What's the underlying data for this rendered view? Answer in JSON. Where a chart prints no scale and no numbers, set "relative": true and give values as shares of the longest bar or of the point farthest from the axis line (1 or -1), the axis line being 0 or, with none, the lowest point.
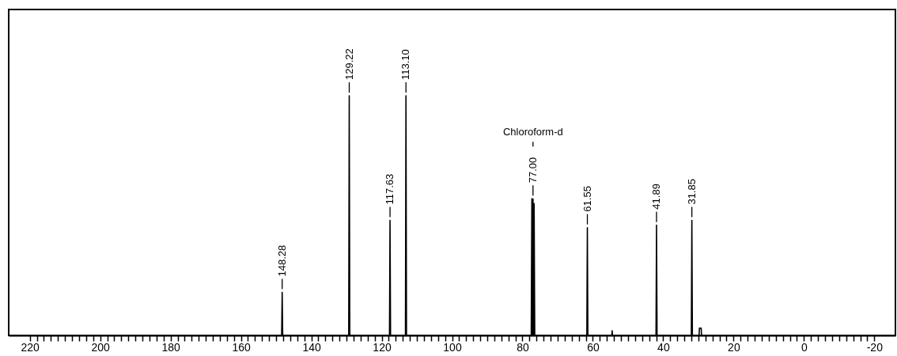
{
  "chart_data": {
    "type": "line",
    "relative": true,
    "marker": "none",
    "grid": false,
    "xlim": [
      226,
      -26
    ],
    "xticks": [
      220,
      {
        "value": 218,
        "label": null
      },
      {
        "value": 216,
        "label": null
      },
      {
        "value": 214,
        "label": null
      },
      {
        "value": 212,
        "label": null
      },
      {
        "value": 210,
        "label": null
      },
      {
        "value": 208,
        "label": null
      },
      {
        "value": 206,
        "label": null
      },
      {
        "value": 204,
        "label": null
      },
      {
        "value": 202,
        "label": null
      },
      200,
      {
        "value": 198,
        "label": null
      },
      {
        "value": 196,
        "label": null
      },
      {
        "value": 194,
        "label": null
      },
      {
        "value": 192,
        "label": null
      },
      {
        "value": 190,
        "label": null
      },
      {
        "value": 188,
        "label": null
      },
      {
        "value": 186,
        "label": null
      },
      {
        "value": 184,
        "label": null
      },
      {
        "value": 182,
        "label": null
      },
      180,
      {
        "value": 178,
        "label": null
      },
      {
        "value": 176,
        "label": null
      },
      {
        "value": 174,
        "label": null
      },
      {
        "value": 172,
        "label": null
      },
      {
        "value": 170,
        "label": null
      },
      {
        "value": 168,
        "label": null
      },
      {
        "value": 166,
        "label": null
      },
      {
        "value": 164,
        "label": null
      },
      {
        "value": 162,
        "label": null
      },
      160,
      {
        "value": 158,
        "label": null
      },
      {
        "value": 156,
        "label": null
      },
      {
        "value": 154,
        "label": null
      },
      {
        "value": 152,
        "label": null
      },
      {
        "value": 150,
        "label": null
      },
      {
        "value": 148,
        "label": null
      },
      {
        "value": 146,
        "label": null
      },
      {
        "value": 144,
        "label": null
      },
      {
        "value": 142,
        "label": null
      },
      140,
      {
        "value": 138,
        "label": null
      },
      {
        "value": 136,
        "label": null
      },
      {
        "value": 134,
        "label": null
      },
      {
        "value": 132,
        "label": null
      },
      {
        "value": 130,
        "label": null
      },
      {
        "value": 128,
        "label": null
      },
      {
        "value": 126,
        "label": null
      },
      {
        "value": 124,
        "label": null
      },
      {
        "value": 122,
        "label": null
      },
      120,
      {
        "value": 118,
        "label": null
      },
      {
        "value": 116,
        "label": null
      },
      {
        "value": 114,
        "label": null
      },
      {
        "value": 112,
        "label": null
      },
      {
        "value": 110,
        "label": null
      },
      {
        "value": 108,
        "label": null
      },
      {
        "value": 106,
        "label": null
      },
      {
        "value": 104,
        "label": null
      },
      {
        "value": 102,
        "label": null
      },
      100,
      {
        "value": 98,
        "label": null
      },
      {
        "value": 96,
        "label": null
      },
      {
        "value": 94,
        "label": null
      },
      {
        "value": 92,
        "label": null
      },
      {
        "value": 90,
        "label": null
      },
      {
        "value": 88,
        "label": null
      },
      {
        "value": 86,
        "label": null
      },
      {
        "value": 84,
        "label": null
      },
      {
        "value": 82,
        "label": null
      },
      80,
      {
        "value": 78,
        "label": null
      },
      {
        "value": 76,
        "label": null
      },
      {
        "value": 74,
        "label": null
      },
      {
        "value": 72,
        "label": null
      },
      {
        "value": 70,
        "label": null
      },
      {
        "value": 68,
        "label": null
      },
      {
        "value": 66,
        "label": null
      },
      {
        "value": 64,
        "label": null
      },
      {
        "value": 62,
        "label": null
      },
      60,
      {
        "value": 58,
        "label": null
      },
      {
        "value": 56,
        "label": null
      },
      {
        "value": 54,
        "label": null
      },
      {
        "value": 52,
        "label": null
      },
      {
        "value": 50,
        "label": null
      },
      {
        "value": 48,
        "label": null
      },
      {
        "value": 46,
        "label": null
      },
      {
        "value": 44,
        "label": null
      },
      {
        "value": 42,
        "label": null
      },
      40,
      {
        "value": 38,
        "label": null
      },
      {
        "value": 36,
        "label": null
      },
      {
        "value": 34,
        "label": null
      },
      {
        "value": 32,
        "label": null
      },
      {
        "value": 30,
        "label": null
      },
      {
        "value": 28,
        "label": null
      },
      {
        "value": 26,
        "label": null
      },
      {
        "value": 24,
        "label": null
      },
      {
        "value": 22,
        "label": null
      },
      20,
      {
        "value": 18,
        "label": null
      },
      {
        "value": 16,
        "label": null
      },
      {
        "value": 14,
        "label": null
      },
      {
        "value": 12,
        "label": null
      },
      {
        "value": 10,
        "label": null
      },
      {
        "value": 8,
        "label": null
      },
      {
        "value": 6,
        "label": null
      },
      {
        "value": 4,
        "label": null
      },
      {
        "value": 2,
        "label": null
      },
      0,
      {
        "value": -2,
        "label": null
      },
      {
        "value": -4,
        "label": null
      },
      {
        "value": -6,
        "label": null
      },
      {
        "value": -8,
        "label": null
      },
      {
        "value": -10,
        "label": null
      },
      {
        "value": -12,
        "label": null
      },
      {
        "value": -14,
        "label": null
      },
      {
        "value": -16,
        "label": null
      },
      {
        "value": -18,
        "label": null
      },
      -20
    ],
    "series": [
      {
        "color": "#000000",
        "x": [
          226,
          148.43,
          148.28,
          148.13,
          129.37,
          129.22,
          129.07,
          117.78,
          117.63,
          117.48,
          113.25,
          113.1,
          112.95,
          77.5,
          77.32,
          77.16,
          77.0,
          76.84,
          76.68,
          76.5,
          61.7,
          61.55,
          61.4,
          54.6,
          54.5,
          54.4,
          42.04,
          41.89,
          41.74,
          32.0,
          31.85,
          31.7,
          29.8,
          29.7,
          29.2,
          29.1,
          -26
        ],
        "values": [
          0,
          0,
          0.18,
          0,
          0,
          1,
          0,
          0,
          0.48,
          0,
          0,
          1,
          0,
          0,
          0.57,
          0,
          0.57,
          0,
          0.55,
          0,
          0,
          0.45,
          0,
          0,
          0.02,
          0,
          0,
          0.46,
          0,
          0,
          0.48,
          0,
          0,
          0.03,
          0.03,
          0,
          0
        ]
      }
    ],
    "annotations": [
      {
        "text": "148.28",
        "x": 148.28,
        "y": 0.18
      },
      {
        "text": "129.22",
        "x": 129.22,
        "y": 1
      },
      {
        "text": "117.63",
        "x": 117.63,
        "y": 0.48
      },
      {
        "text": "113.10",
        "x": 113.1,
        "y": 1
      },
      {
        "text": "77.00",
        "x": 77.0,
        "y": 0.57
      },
      "Chloroform-d",
      {
        "text": "61.55",
        "x": 61.55,
        "y": 0.45
      },
      {
        "text": "41.89",
        "x": 41.89,
        "y": 0.46
      },
      {
        "text": "31.85",
        "x": 31.85,
        "y": 0.48
      }
    ]
  }
}
